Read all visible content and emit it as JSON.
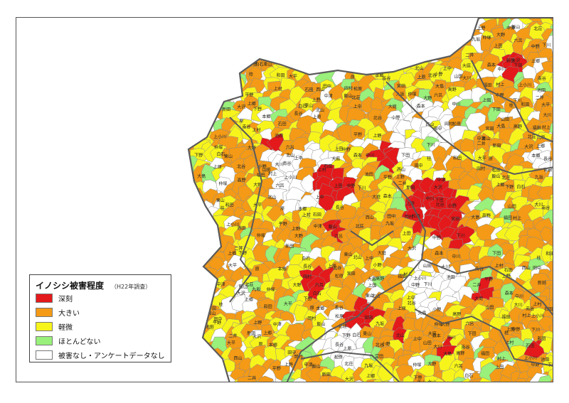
{
  "legend": {
    "title": "イノシシ被害程度",
    "note": "（H22年調査）",
    "items": [
      {
        "label": "深刻",
        "color": "#e4191b"
      },
      {
        "label": "大きい",
        "color": "#f49a16"
      },
      {
        "label": "軽微",
        "color": "#f7f41c"
      },
      {
        "label": "ほとんどない",
        "color": "#99f07a"
      },
      {
        "label": "被害なし・アンケートデータなし",
        "color": "#ffffff"
      }
    ]
  },
  "map_labels": [
    "上野",
    "中津",
    "飯山",
    "北荘",
    "九坂",
    "仲塚",
    "大野",
    "六呂",
    "上田",
    "中野",
    "下川",
    "二井",
    "新田",
    "大沢",
    "上郷",
    "下野",
    "白石",
    "東山",
    "北山",
    "上中",
    "大庭",
    "森本",
    "中川",
    "下田",
    "桂",
    "和田",
    "大平",
    "原",
    "本郷",
    "長谷",
    "上原",
    "北谷",
    "小野",
    "山田",
    "大川",
    "南谷",
    "上村",
    "石田",
    "西山",
    "田中",
    "岡村",
    "松原",
    "宮田",
    "大島",
    "高野",
    "福田",
    "村上",
    "上小川",
    "池田",
    "平野"
  ]
}
